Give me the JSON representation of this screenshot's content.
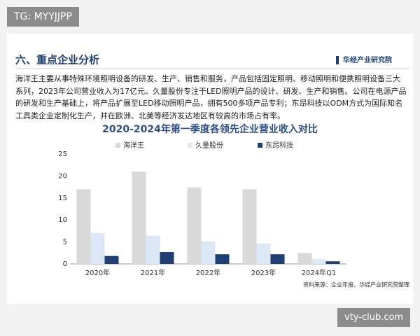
{
  "badge": "TG: MYYJJPP",
  "watermark": "vty-club.com",
  "header": {
    "title": "六、重点企业分析",
    "logo": "华经产业研究院"
  },
  "paragraph": "海洋王主要从事特殊环境照明设备的研发、生产、销售和服务，产品包括固定照明、移动照明和便携照明设备三大系列，2023年公司营业收入为17亿元。久量股份专注于LED照明产品的设计、研发、生产和销售。公司在电源产品的研发和生产基础上，将产品扩展至LED移动照明产品，拥有500多项产品专利；东昂科技以ODM方式为国际知名工具类企业定制化生产，并在欧洲、北美等经济发达地区有较高的市场占有率。",
  "chart_data": {
    "type": "bar",
    "title": "2020-2024年第一季度各领先企业营业收入对比",
    "categories": [
      "2020年",
      "2021年",
      "2022年",
      "2023年",
      "2024年Q1"
    ],
    "series": [
      {
        "name": "海洋王",
        "color": "#d9d9d9",
        "values": [
          17,
          21,
          17.4,
          17,
          2.5
        ]
      },
      {
        "name": "久量股份",
        "color": "#dbe7f6",
        "values": [
          7,
          6.4,
          5.1,
          4.6,
          1.1
        ]
      },
      {
        "name": "东昂科技",
        "color": "#1f3f72",
        "values": [
          1.8,
          2.7,
          2.2,
          2.2,
          0.6
        ]
      }
    ],
    "ylim": [
      0,
      25
    ],
    "yticks": [
      0,
      5,
      10,
      15,
      20,
      25
    ],
    "source": "资料来源：企业年报，华经产业研究院整理"
  }
}
